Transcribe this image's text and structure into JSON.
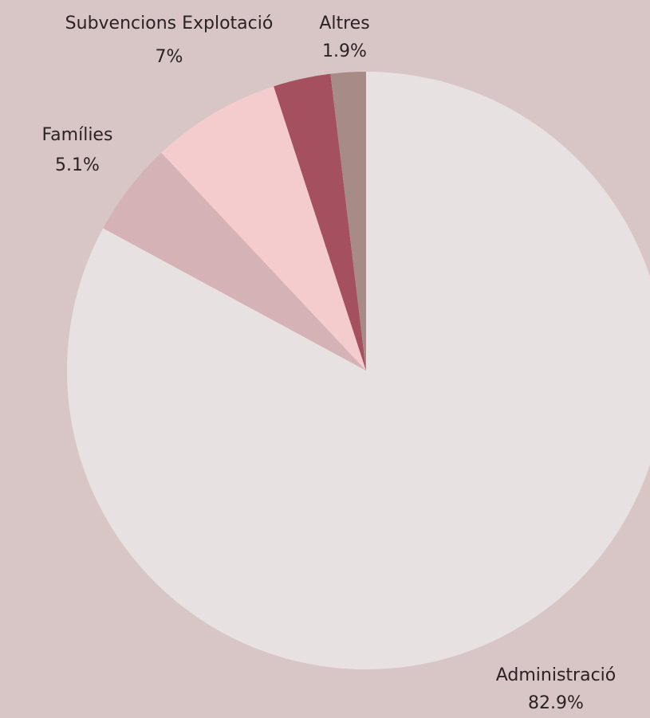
{
  "chart_data": {
    "type": "pie",
    "categories": [
      "Administració",
      "Famílies",
      "Subvencions Explotació",
      null,
      "Altres"
    ],
    "values": [
      82.9,
      5.1,
      7,
      3.1,
      1.9
    ],
    "value_labels": [
      "82.9%",
      "5.1%",
      "7%",
      null,
      "1.9%"
    ],
    "colors": [
      "#e8e1e2",
      "#d4b2b5",
      "#f5cccd",
      "#a4505e",
      "#a78b86"
    ]
  }
}
